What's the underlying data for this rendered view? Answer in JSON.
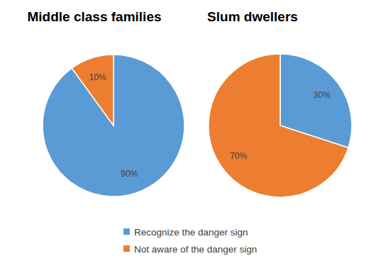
{
  "chart_data": [
    {
      "type": "pie",
      "title": "Middle class families",
      "categories": [
        "Recognize the danger sign",
        "Not aware of the danger sign"
      ],
      "values": [
        90,
        10
      ],
      "value_labels": [
        "90%",
        "10%"
      ],
      "colors": [
        "#5b9bd5",
        "#ed7d31"
      ],
      "data_labels": true,
      "legend": "bottom"
    },
    {
      "type": "pie",
      "title": "Slum dwellers",
      "categories": [
        "Recognize the danger sign",
        "Not aware of the danger sign"
      ],
      "values": [
        30,
        70
      ],
      "value_labels": [
        "30%",
        "70%"
      ],
      "colors": [
        "#5b9bd5",
        "#ed7d31"
      ],
      "data_labels": true,
      "legend": "bottom"
    }
  ]
}
